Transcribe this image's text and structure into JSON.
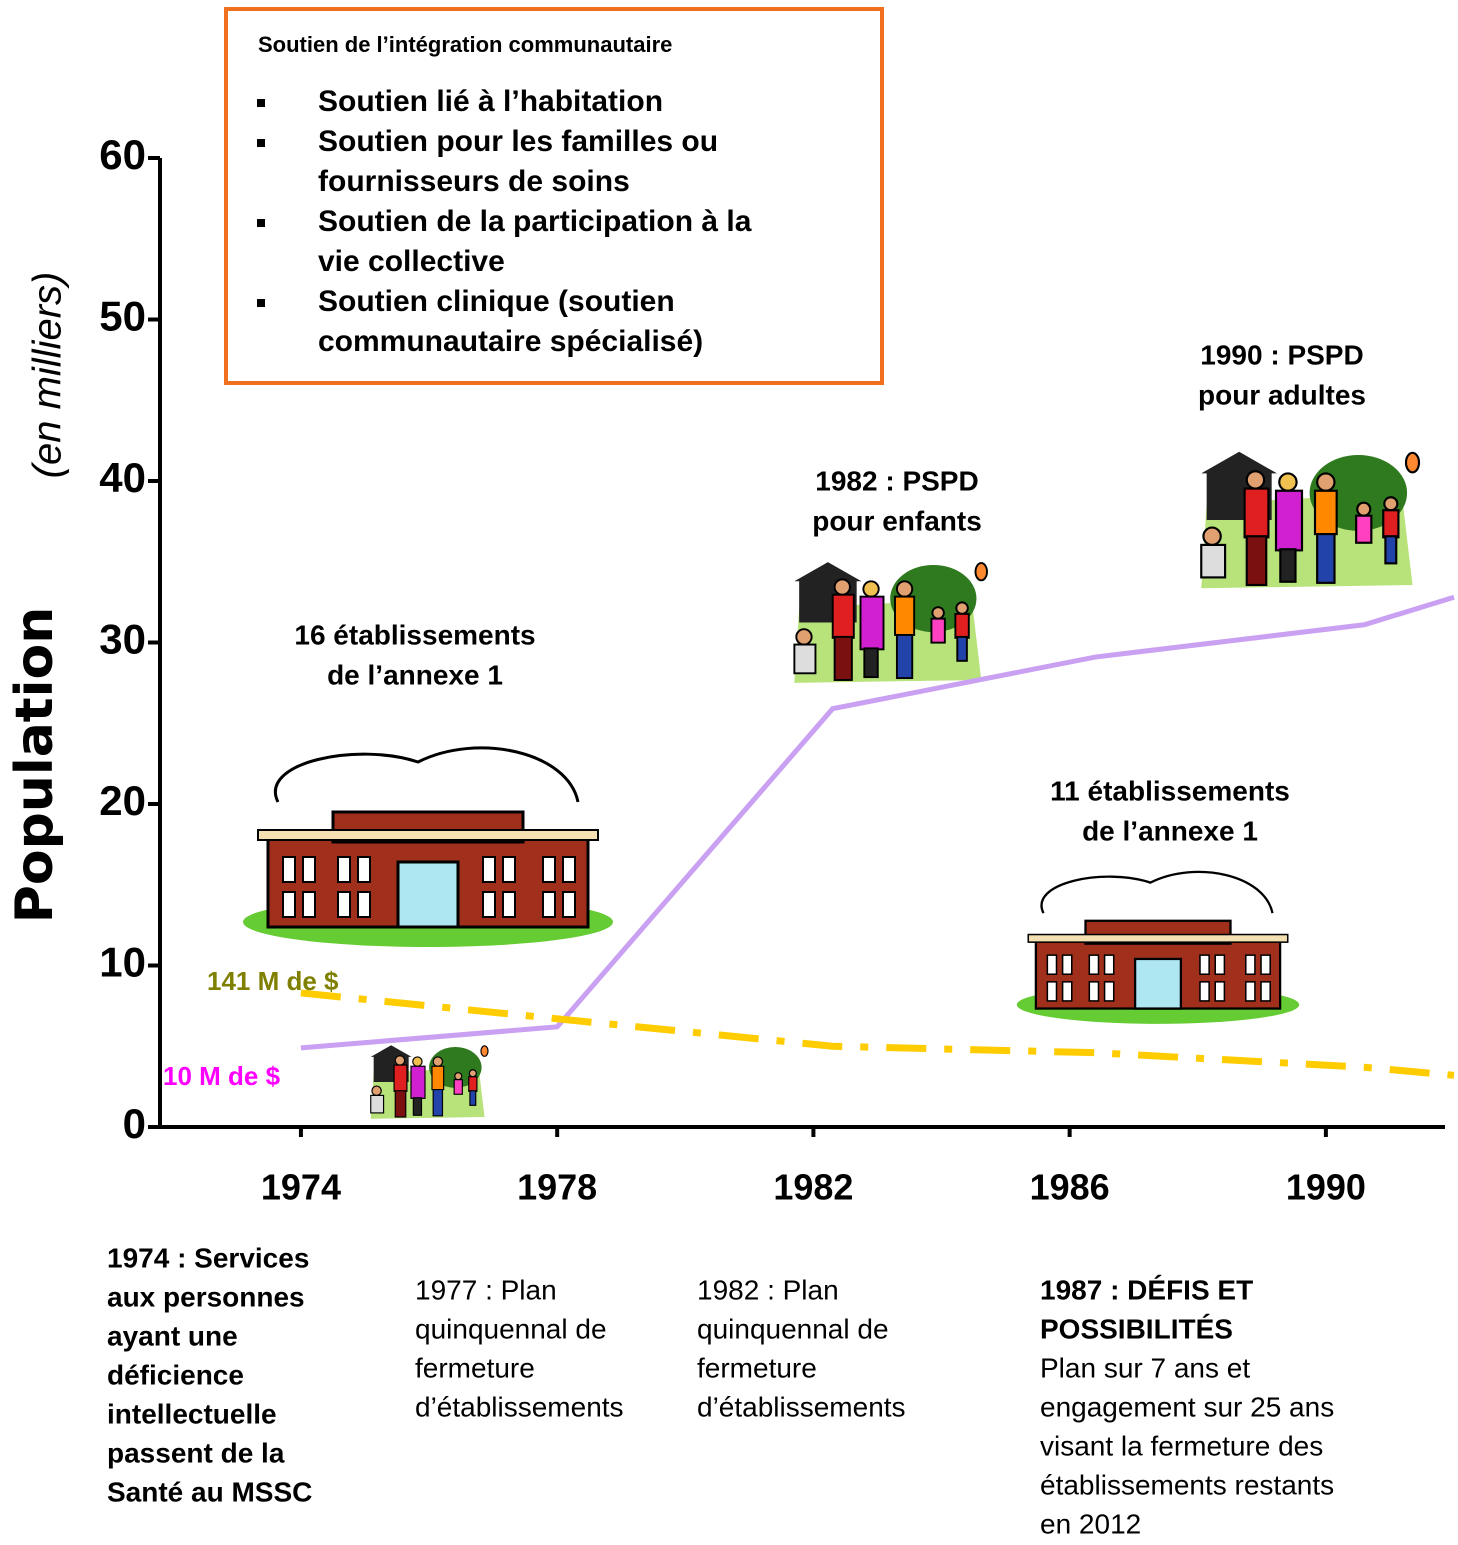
{
  "chart_data": {
    "type": "line",
    "y_label": "Population",
    "y_sublabel": "(en milliers)",
    "xlim": [
      1971.8,
      1992
    ],
    "xticks": [
      1974,
      1978,
      1982,
      1986,
      1990
    ],
    "ylim": [
      0,
      60
    ],
    "yticks": [
      0,
      10,
      20,
      30,
      40,
      50,
      60
    ],
    "grid": false,
    "series": [
      {
        "name": "10 M de $",
        "color": "#c9a0f2",
        "label_color": "#ff00ff",
        "dashed": false,
        "x": [
          1974,
          1978,
          1982.3,
          1986.4,
          1990.6,
          1992
        ],
        "values": [
          4.9,
          6.2,
          25.9,
          29.1,
          31.1,
          32.8
        ]
      },
      {
        "name": "141 M de $",
        "color": "#ffcc00",
        "label_color": "#808000",
        "dashed": true,
        "x": [
          1974,
          1978,
          1982.3,
          1986.4,
          1990.6,
          1992
        ],
        "values": [
          8.3,
          6.7,
          5.0,
          4.6,
          3.7,
          3.2
        ]
      }
    ],
    "callout": {
      "title": "Soutien de l’intégration communautaire",
      "items": [
        [
          "Soutien lié à l’habitation"
        ],
        [
          "Soutien pour les familles ou",
          "fournisseurs de soins"
        ],
        [
          "Soutien de la participation à la",
          "vie collective"
        ],
        [
          "Soutien clinique (soutien",
          "communautaire spécialisé)"
        ]
      ]
    },
    "annotations": [
      [
        "16 établissements",
        "de l’annexe 1"
      ],
      [
        "1982 : PSPD",
        "pour enfants"
      ],
      [
        "1990 : PSPD",
        "pour adultes"
      ],
      [
        "11 établissements",
        "de l’annexe 1"
      ]
    ],
    "notes": [
      {
        "heading": [
          "1974 : Services",
          "aux personnes",
          "ayant une",
          "déficience",
          "intellectuelle",
          "passent de la",
          "Santé au MSSC"
        ]
      },
      {
        "body": [
          "1977 : Plan",
          "quinquennal de",
          "fermeture",
          "d’établissements"
        ]
      },
      {
        "body": [
          "1982 : Plan",
          "quinquennal de",
          "fermeture",
          "d’établissements"
        ]
      },
      {
        "heading": [
          "1987 : DÉFIS ET",
          "POSSIBILITÉS"
        ],
        "body": [
          "Plan sur 7 ans et",
          "engagement sur 25 ans",
          "visant la fermeture des",
          "établissements restants",
          "en 2012"
        ]
      }
    ]
  }
}
